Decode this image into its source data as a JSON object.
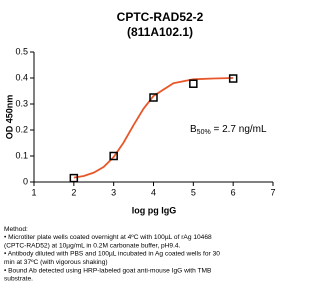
{
  "chart_data": {
    "type": "scatter",
    "title": "CPTC-RAD52-2",
    "subtitle": "(811A102.1)",
    "x_label": "log pg IgG",
    "y_label": "OD 450nm",
    "xlim": [
      1,
      7
    ],
    "xticks": [
      1,
      2,
      3,
      4,
      5,
      6,
      7
    ],
    "ylim": [
      0,
      0.5
    ],
    "yticks": [
      0.0,
      0.1,
      0.2,
      0.3,
      0.4,
      0.5
    ],
    "annotation": {
      "text": "B",
      "subscript": "50%",
      "suffix": " = 2.7 ng/mL"
    },
    "series": [
      {
        "kind": "points",
        "color": "#000000",
        "x": [
          2,
          3,
          4,
          5,
          6
        ],
        "values": [
          0.015,
          0.1,
          0.325,
          0.378,
          0.398
        ]
      },
      {
        "kind": "fit",
        "color": "#e8572a",
        "x": [
          2,
          2.25,
          2.5,
          2.75,
          3,
          3.25,
          3.5,
          3.75,
          4,
          4.5,
          5,
          5.5,
          6
        ],
        "values": [
          0.017,
          0.023,
          0.036,
          0.058,
          0.096,
          0.152,
          0.219,
          0.282,
          0.331,
          0.38,
          0.395,
          0.398,
          0.4
        ]
      }
    ]
  },
  "method_text": [
    "Method:",
    "• Microtiter plate wells coated overnight at 4ºC  with 100µL of rAg 10468",
    "(CPTC-RAD52) at 10µg/mL in 0.2M carbonate buffer, pH9.4.",
    "• Antibody diluted with PBS and 100µL incubated in Ag coated wells for 30",
    "min at 37ºC (with vigorous shaking)",
    "• Bound Ab detected using HRP-labeled goat anti-mouse IgG with TMB",
    "substrate."
  ]
}
